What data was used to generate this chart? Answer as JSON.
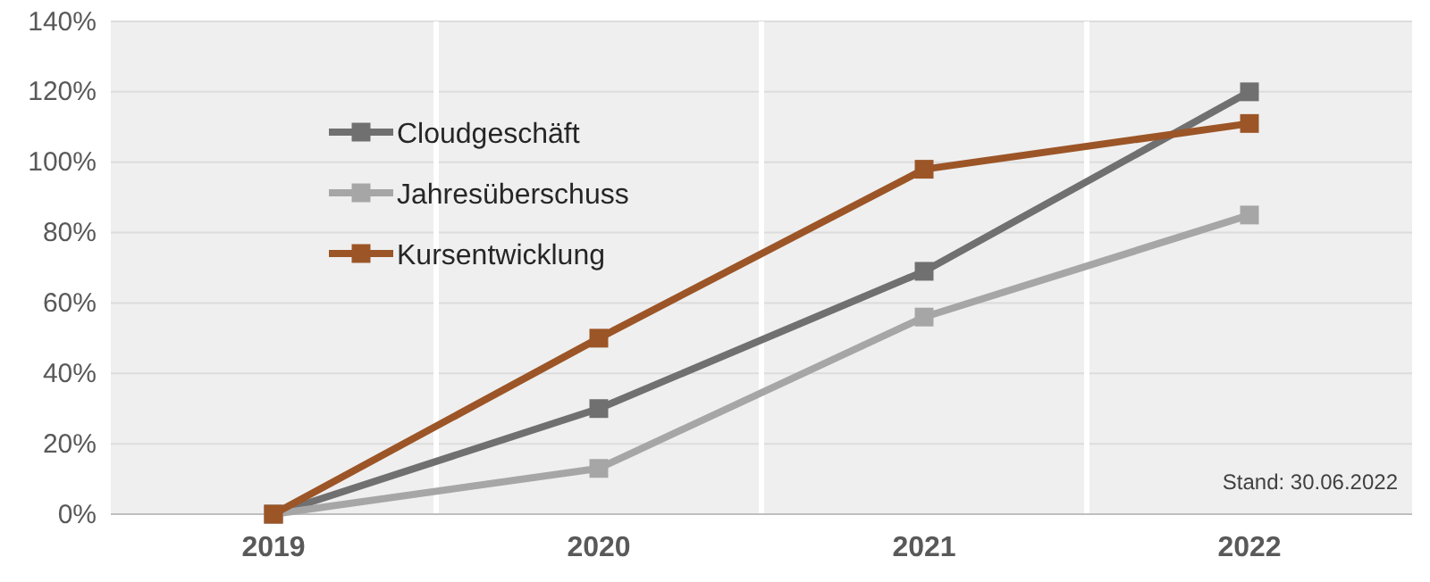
{
  "chart_data": {
    "type": "line",
    "categories": [
      "2019",
      "2020",
      "2021",
      "2022"
    ],
    "series": [
      {
        "name": "Cloudgeschäft",
        "color": "#707070",
        "values": [
          0,
          30,
          69,
          120
        ]
      },
      {
        "name": "Jahresüberschuss",
        "color": "#a6a6a6",
        "values": [
          0,
          13,
          56,
          85
        ]
      },
      {
        "name": "Kursentwicklung",
        "color": "#9c5527",
        "values": [
          0,
          50,
          98,
          111
        ]
      }
    ],
    "ylim": [
      0,
      140
    ],
    "yticks": [
      {
        "value": 0,
        "label": "0%"
      },
      {
        "value": 20,
        "label": "20%"
      },
      {
        "value": 40,
        "label": "40%"
      },
      {
        "value": 60,
        "label": "60%"
      },
      {
        "value": 80,
        "label": "80%"
      },
      {
        "value": 100,
        "label": "100%"
      },
      {
        "value": 120,
        "label": "120%"
      },
      {
        "value": 140,
        "label": "140%"
      }
    ],
    "grid": true,
    "legend": "top left",
    "marker": "square",
    "line_style": "solid",
    "annotations": [
      "Stand: 30.06.2022"
    ]
  }
}
